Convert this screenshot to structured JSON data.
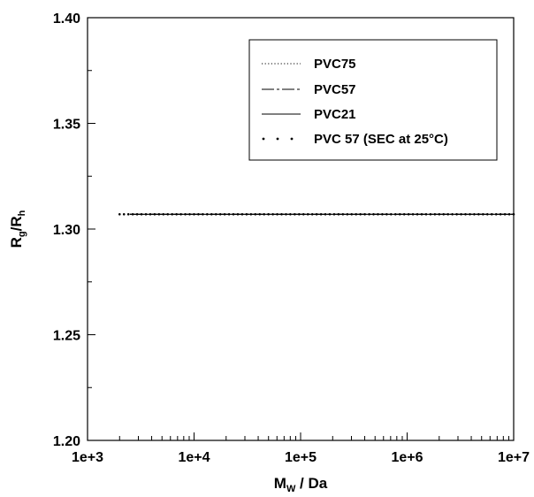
{
  "chart_data": {
    "type": "line",
    "title": "",
    "xlabel": {
      "main": "M",
      "sub": "W",
      "rest": " / Da"
    },
    "ylabel": {
      "a": "R",
      "a_sub": "g",
      "mid": "/R",
      "b_sub": "h"
    },
    "xscale": "log",
    "xlim": [
      1000,
      10000000
    ],
    "ylim": [
      1.2,
      1.4
    ],
    "x_ticks": [
      "1e+3",
      "1e+4",
      "1e+5",
      "1e+6",
      "1e+7"
    ],
    "y_ticks": [
      "1.20",
      "1.25",
      "1.30",
      "1.35",
      "1.40"
    ],
    "grid": false,
    "legend_position": "top-right",
    "series": [
      {
        "name": "PVC75",
        "style": "dotted",
        "x": [
          2500,
          10000000
        ],
        "y": [
          1.307,
          1.307
        ]
      },
      {
        "name": "PVC57",
        "style": "dash-dot",
        "x": [
          2500,
          10000000
        ],
        "y": [
          1.307,
          1.307
        ]
      },
      {
        "name": "PVC21",
        "style": "solid",
        "x": [
          2500,
          10000000
        ],
        "y": [
          1.307,
          1.307
        ]
      },
      {
        "name": "PVC 57 (SEC at 25°C)",
        "style": "points",
        "x": [
          2000,
          10000000
        ],
        "y": [
          1.307,
          1.307
        ]
      }
    ]
  }
}
